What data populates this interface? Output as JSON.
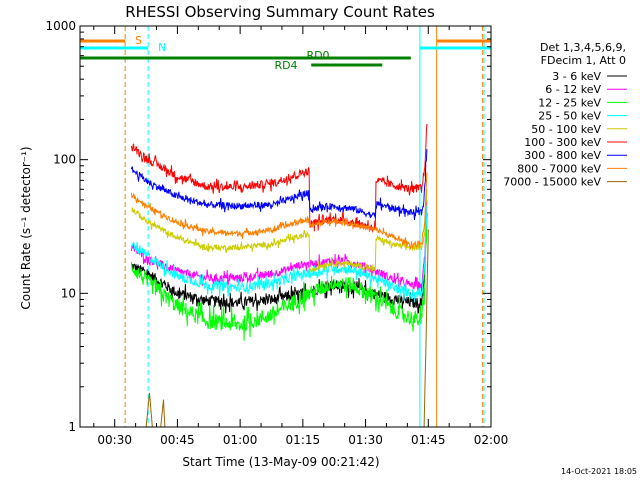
{
  "chart_data": {
    "type": "line",
    "title": "RHESSI Observing Summary Count Rates",
    "xlabel": "Start Time (13-May-09 00:21:42)",
    "ylabel": "Count Rate (s⁻¹ detector⁻¹)",
    "x_range": [
      "00:21:42",
      "02:00:00"
    ],
    "x_ticks": [
      "00:30",
      "00:45",
      "01:00",
      "01:15",
      "01:30",
      "01:45",
      "02:00"
    ],
    "y_scale": "log",
    "ylim": [
      1,
      1000
    ],
    "y_ticks": [
      "1",
      "10",
      "100",
      "1000"
    ],
    "legend_header": [
      "Det 1,3,4,5,6,9,",
      "FDecim 1, Att 0"
    ],
    "legend_position": "right",
    "grid": false,
    "footer": "14-Oct-2021 18:05",
    "flags": [
      {
        "label": "S",
        "color": "#ff8000",
        "intervals": [
          [
            "00:21:42",
            "00:32:30"
          ],
          [
            "01:47:00",
            "02:00:00"
          ]
        ],
        "level": "top"
      },
      {
        "label": "N",
        "color": "#00ffff",
        "intervals": [
          [
            "00:21:42",
            "00:38:00"
          ],
          [
            "01:43:00",
            "02:00:00"
          ]
        ],
        "level": "upper"
      },
      {
        "label": "RD0",
        "color": "#008000",
        "intervals": [
          [
            "00:21:42",
            "01:40:50"
          ]
        ],
        "level": "middle"
      },
      {
        "label": "RD4",
        "color": "#008000",
        "intervals": [
          [
            "01:17:00",
            "01:34:00"
          ]
        ],
        "level": "lower"
      }
    ],
    "vertical_markers": [
      {
        "time": "00:32:30",
        "color": "#ff8000",
        "style": "dashed"
      },
      {
        "time": "00:38:00",
        "color": "#00ffff",
        "style": "dashed"
      },
      {
        "time": "01:43:00",
        "color": "#00ffff",
        "style": "solid"
      },
      {
        "time": "01:47:00",
        "color": "#ff8000",
        "style": "solid"
      },
      {
        "time": "01:58:00",
        "color": "#ff8000",
        "style": "dashed"
      },
      {
        "time": "01:58:20",
        "color": "#00ffff",
        "style": "dashed"
      }
    ],
    "series": [
      {
        "name": "3 - 6 keV",
        "color": "#000000",
        "noise": 0.04,
        "points": [
          [
            "00:34:00",
            16
          ],
          [
            "00:38:00",
            14
          ],
          [
            "00:45:00",
            10
          ],
          [
            "00:52:00",
            8.8
          ],
          [
            "01:00:00",
            8.5
          ],
          [
            "01:08:00",
            9
          ],
          [
            "01:15:00",
            10
          ],
          [
            "01:17:00",
            10.5
          ],
          [
            "01:22:00",
            11.5
          ],
          [
            "01:27:00",
            11.2
          ],
          [
            "01:32:00",
            10
          ],
          [
            "01:37:00",
            9
          ],
          [
            "01:41:00",
            8.5
          ],
          [
            "01:43:30",
            8.5
          ],
          [
            "01:44:10",
            15
          ],
          [
            "01:44:40",
            40
          ]
        ]
      },
      {
        "name": "6 - 12 keV",
        "color": "#ff00ff",
        "noise": 0.03,
        "points": [
          [
            "00:34:00",
            22
          ],
          [
            "00:38:00",
            18
          ],
          [
            "00:45:00",
            14.5
          ],
          [
            "00:52:00",
            13
          ],
          [
            "01:00:00",
            13
          ],
          [
            "01:08:00",
            14
          ],
          [
            "01:15:00",
            16.5
          ],
          [
            "01:17:00",
            16.5
          ],
          [
            "01:22:00",
            17.5
          ],
          [
            "01:27:00",
            17
          ],
          [
            "01:32:00",
            15
          ],
          [
            "01:37:00",
            12.5
          ],
          [
            "01:41:00",
            11.5
          ],
          [
            "01:43:30",
            11.5
          ],
          [
            "01:44:10",
            20
          ],
          [
            "01:44:40",
            50
          ]
        ]
      },
      {
        "name": "12 - 25 keV",
        "color": "#00ff00",
        "noise": 0.06,
        "points": [
          [
            "00:34:00",
            16
          ],
          [
            "00:38:00",
            12
          ],
          [
            "00:45:00",
            8
          ],
          [
            "00:52:00",
            6.2
          ],
          [
            "01:00:00",
            5.8
          ],
          [
            "01:08:00",
            7
          ],
          [
            "01:15:00",
            9.5
          ],
          [
            "01:17:00",
            10
          ],
          [
            "01:22:00",
            12
          ],
          [
            "01:27:00",
            11.5
          ],
          [
            "01:32:00",
            9.5
          ],
          [
            "01:37:00",
            7.5
          ],
          [
            "01:41:00",
            6.5
          ],
          [
            "01:43:30",
            6.3
          ],
          [
            "01:44:10",
            12
          ],
          [
            "01:44:40",
            35
          ]
        ]
      },
      {
        "name": "25 - 50 keV",
        "color": "#00ffff",
        "noise": 0.035,
        "points": [
          [
            "00:34:00",
            23
          ],
          [
            "00:38:00",
            19
          ],
          [
            "00:45:00",
            13.5
          ],
          [
            "00:52:00",
            11.5
          ],
          [
            "01:00:00",
            11
          ],
          [
            "01:08:00",
            12
          ],
          [
            "01:15:00",
            14
          ],
          [
            "01:17:00",
            14
          ],
          [
            "01:22:00",
            15.5
          ],
          [
            "01:27:00",
            15
          ],
          [
            "01:32:00",
            13
          ],
          [
            "01:37:00",
            11
          ],
          [
            "01:41:00",
            10
          ],
          [
            "01:43:30",
            10
          ],
          [
            "01:44:10",
            18
          ],
          [
            "01:44:40",
            45
          ]
        ]
      },
      {
        "name": "50 - 100 keV",
        "color": "#cccc00",
        "noise": 0.02,
        "points": [
          [
            "00:34:00",
            43
          ],
          [
            "00:38:00",
            34
          ],
          [
            "00:45:00",
            26
          ],
          [
            "00:52:00",
            22
          ],
          [
            "01:00:00",
            22
          ],
          [
            "01:08:00",
            23.5
          ],
          [
            "01:15:00",
            27
          ],
          [
            "01:16:30",
            27.5
          ],
          [
            "01:16:40",
            15
          ],
          [
            "01:22:00",
            17
          ],
          [
            "01:27:00",
            16.5
          ],
          [
            "01:32:00",
            15
          ],
          [
            "01:32:20",
            15
          ],
          [
            "01:32:30",
            26
          ],
          [
            "01:37:00",
            23
          ],
          [
            "01:41:00",
            22
          ],
          [
            "01:43:30",
            22
          ],
          [
            "01:44:10",
            30
          ],
          [
            "01:44:40",
            60
          ]
        ]
      },
      {
        "name": "100 - 300 keV",
        "color": "#ff0000",
        "noise": 0.03,
        "points": [
          [
            "00:34:00",
            125
          ],
          [
            "00:38:00",
            100
          ],
          [
            "00:45:00",
            75
          ],
          [
            "00:52:00",
            63
          ],
          [
            "01:00:00",
            62
          ],
          [
            "01:08:00",
            67
          ],
          [
            "01:15:00",
            80
          ],
          [
            "01:16:30",
            82
          ],
          [
            "01:16:40",
            33
          ],
          [
            "01:22:00",
            36
          ],
          [
            "01:27:00",
            34
          ],
          [
            "01:32:00",
            31
          ],
          [
            "01:32:20",
            31
          ],
          [
            "01:32:30",
            70
          ],
          [
            "01:37:00",
            64
          ],
          [
            "01:41:00",
            60
          ],
          [
            "01:43:30",
            62
          ],
          [
            "01:44:10",
            90
          ],
          [
            "01:44:40",
            185
          ]
        ]
      },
      {
        "name": "300 - 800 keV",
        "color": "#0000ff",
        "noise": 0.025,
        "points": [
          [
            "00:34:00",
            85
          ],
          [
            "00:38:00",
            68
          ],
          [
            "00:45:00",
            53
          ],
          [
            "00:52:00",
            46
          ],
          [
            "01:00:00",
            45
          ],
          [
            "01:08:00",
            46
          ],
          [
            "01:15:00",
            55
          ],
          [
            "01:16:30",
            56
          ],
          [
            "01:16:40",
            43
          ],
          [
            "01:22:00",
            45
          ],
          [
            "01:27:00",
            43
          ],
          [
            "01:32:00",
            38
          ],
          [
            "01:32:20",
            38
          ],
          [
            "01:32:30",
            47
          ],
          [
            "01:37:00",
            43
          ],
          [
            "01:41:00",
            40
          ],
          [
            "01:43:30",
            40
          ],
          [
            "01:44:10",
            60
          ],
          [
            "01:44:40",
            120
          ]
        ]
      },
      {
        "name": "800 - 7000 keV",
        "color": "#ff8000",
        "noise": 0.02,
        "points": [
          [
            "00:34:00",
            55
          ],
          [
            "00:38:00",
            44
          ],
          [
            "00:45:00",
            34
          ],
          [
            "00:52:00",
            29
          ],
          [
            "01:00:00",
            28
          ],
          [
            "01:08:00",
            30
          ],
          [
            "01:15:00",
            35
          ],
          [
            "01:16:30",
            36
          ],
          [
            "01:16:40",
            32
          ],
          [
            "01:22:00",
            35
          ],
          [
            "01:27:00",
            33
          ],
          [
            "01:32:00",
            30
          ],
          [
            "01:32:20",
            30
          ],
          [
            "01:32:30",
            30
          ],
          [
            "01:37:00",
            26
          ],
          [
            "01:41:00",
            23
          ],
          [
            "01:43:30",
            24
          ],
          [
            "01:44:10",
            35
          ],
          [
            "01:44:40",
            80
          ]
        ]
      },
      {
        "name": "7000 - 15000 keV",
        "color": "#996600",
        "noise": 0.0,
        "points": [
          [
            "00:37:30",
            1
          ],
          [
            "00:38:20",
            1.8
          ],
          [
            "00:39:00",
            1
          ],
          [
            "00:41:00",
            1
          ],
          [
            "00:41:40",
            1.6
          ],
          [
            "00:42:00",
            1
          ],
          [
            "01:44:00",
            1
          ],
          [
            "01:44:30",
            5
          ],
          [
            "01:45:00",
            30
          ]
        ]
      }
    ]
  }
}
